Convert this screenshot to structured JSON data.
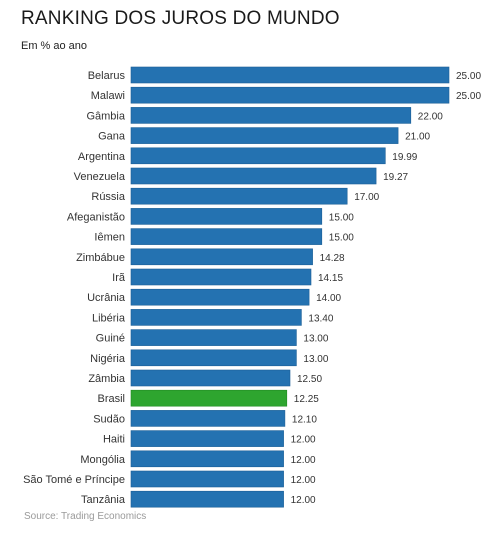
{
  "header": {
    "title": "RANKING DOS JUROS DO MUNDO",
    "subtitle": "Em % ao ano"
  },
  "footer": {
    "source": "Source: Trading Economics"
  },
  "colors": {
    "bar": "#2472b1",
    "bar_stroke": "#1d5f96",
    "highlight": "#2ea52f",
    "highlight_stroke": "#238a23",
    "label": "#333333"
  },
  "chart_data": {
    "type": "bar",
    "orientation": "horizontal",
    "title": "RANKING DOS JUROS DO MUNDO",
    "subtitle": "Em % ao ano",
    "xlim": [
      0,
      25
    ],
    "grid": false,
    "highlight": "Brasil",
    "categories": [
      "Belarus",
      "Malawi",
      "Gâmbia",
      "Gana",
      "Argentina",
      "Venezuela",
      "Rússia",
      "Afeganistão",
      "Iêmen",
      "Zimbábue",
      "Irã",
      "Ucrânia",
      "Libéria",
      "Guiné",
      "Nigéria",
      "Zâmbia",
      "Brasil",
      "Sudão",
      "Haiti",
      "Mongólia",
      "São Tomé e Príncipe",
      "Tanzânia"
    ],
    "values": [
      25.0,
      25.0,
      22.0,
      21.0,
      19.99,
      19.27,
      17.0,
      15.0,
      15.0,
      14.28,
      14.15,
      14.0,
      13.4,
      13.0,
      13.0,
      12.5,
      12.25,
      12.1,
      12.0,
      12.0,
      12.0,
      12.0
    ],
    "value_labels": [
      "25.00",
      "25.00",
      "22.00",
      "21.00",
      "19.99",
      "19.27",
      "17.00",
      "15.00",
      "15.00",
      "14.28",
      "14.15",
      "14.00",
      "13.40",
      "13.00",
      "13.00",
      "12.50",
      "12.25",
      "12.10",
      "12.00",
      "12.00",
      "12.00",
      "12.00"
    ]
  }
}
